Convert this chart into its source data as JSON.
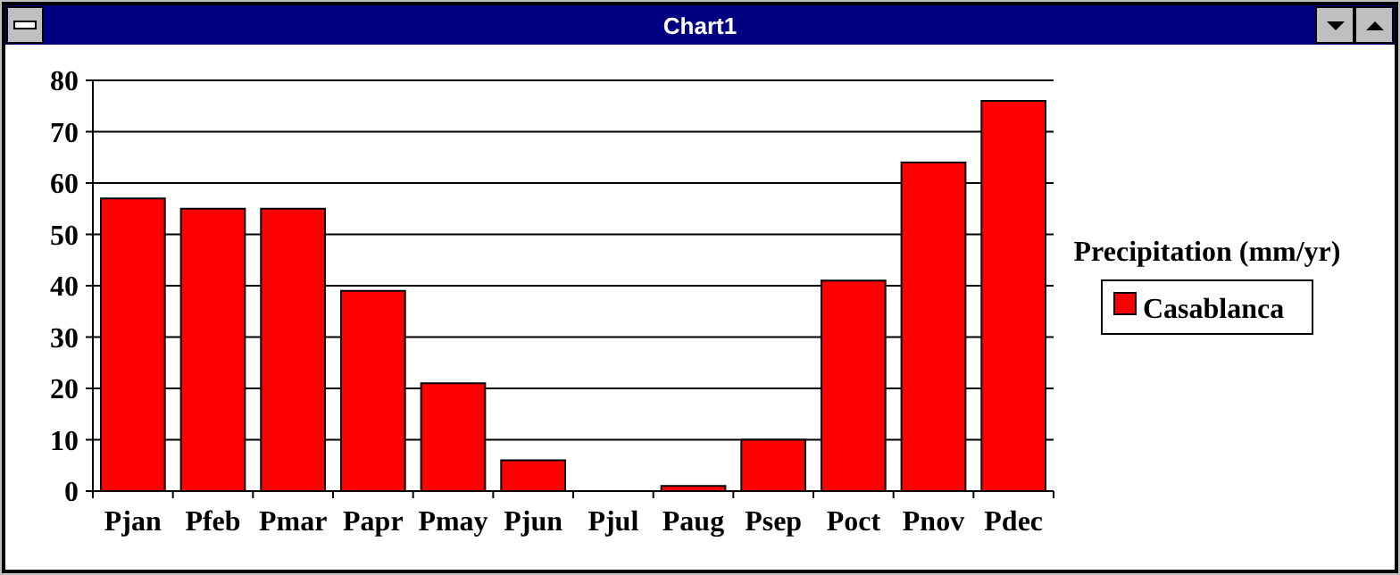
{
  "chart_data": {
    "type": "bar",
    "title": "Chart1",
    "legend_title": "Precipitation (mm/yr)",
    "categories": [
      "Pjan",
      "Pfeb",
      "Pmar",
      "Papr",
      "Pmay",
      "Pjun",
      "Pjul",
      "Paug",
      "Psep",
      "Poct",
      "Pnov",
      "Pdec"
    ],
    "series": [
      {
        "name": "Casablanca",
        "color": "#ff0000",
        "values": [
          57,
          55,
          55,
          39,
          21,
          6,
          0,
          1,
          10,
          41,
          64,
          76
        ]
      }
    ],
    "ylim": [
      0,
      80
    ],
    "yticks": [
      0,
      10,
      20,
      30,
      40,
      50,
      60,
      70,
      80
    ],
    "grid": "y",
    "legend": "right"
  }
}
